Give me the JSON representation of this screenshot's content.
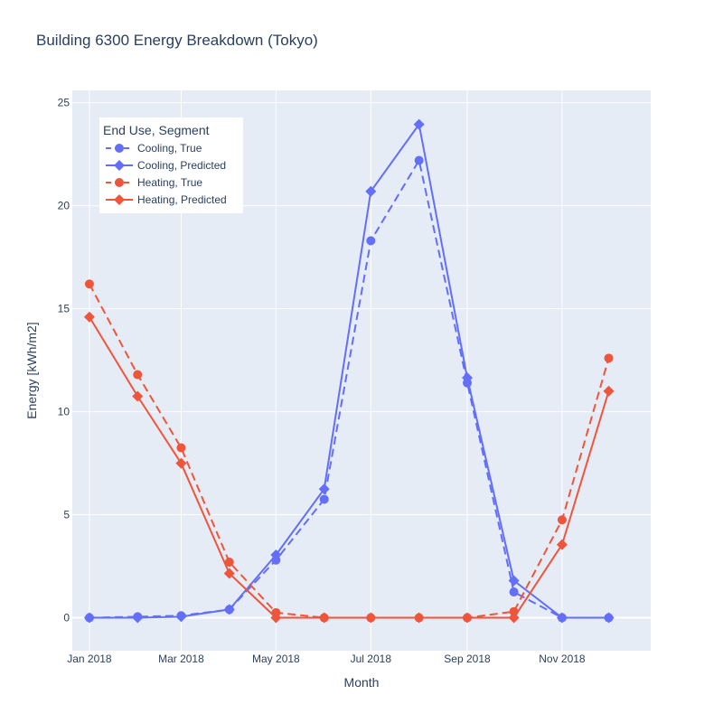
{
  "chart_data": {
    "type": "line",
    "title": "Building 6300  Energy Breakdown (Tokyo)",
    "xlabel": "Month",
    "ylabel": "Energy  [kWh/m2]",
    "x": [
      "2018-01-01",
      "2018-02-01",
      "2018-03-01",
      "2018-04-01",
      "2018-05-01",
      "2018-06-01",
      "2018-07-01",
      "2018-08-01",
      "2018-09-01",
      "2018-10-01",
      "2018-11-01",
      "2018-12-01"
    ],
    "x_range": [
      "2017-12-21",
      "2018-12-28"
    ],
    "x_ticks": [
      "2018-01-01",
      "2018-03-01",
      "2018-05-01",
      "2018-07-01",
      "2018-09-01",
      "2018-11-01"
    ],
    "x_tick_labels": [
      "Jan 2018",
      "Mar 2018",
      "May 2018",
      "Jul 2018",
      "Sep 2018",
      "Nov 2018"
    ],
    "ylim": [
      -1.6,
      25.6
    ],
    "y_ticks": [
      0,
      5,
      10,
      15,
      20,
      25
    ],
    "y_tick_labels": [
      "0",
      "5",
      "10",
      "15",
      "20",
      "25"
    ],
    "grid": true,
    "legend": {
      "title": "End Use, Segment",
      "position": "top-left"
    },
    "colors": {
      "cooling": "#636efa",
      "heating": "#ef553b",
      "plot_bg": "#e5ecf6",
      "grid": "#ffffff",
      "text": "#2a3f5f"
    },
    "series": [
      {
        "name": "Cooling, True",
        "color": "#636efa",
        "dash": "dashed",
        "marker": "circle",
        "values": [
          0.0,
          0.05,
          0.1,
          0.4,
          2.8,
          5.75,
          18.3,
          22.2,
          11.4,
          1.25,
          0.0,
          0.0
        ]
      },
      {
        "name": "Cooling, Predicted",
        "color": "#636efa",
        "dash": "solid",
        "marker": "diamond",
        "values": [
          0.0,
          0.0,
          0.05,
          0.4,
          3.05,
          6.25,
          20.7,
          23.95,
          11.65,
          1.8,
          0.0,
          0.0
        ]
      },
      {
        "name": "Heating, True",
        "color": "#ef553b",
        "dash": "dashed",
        "marker": "circle",
        "values": [
          16.2,
          11.8,
          8.25,
          2.7,
          0.25,
          0.0,
          0.0,
          0.0,
          0.0,
          0.3,
          4.75,
          12.6
        ]
      },
      {
        "name": "Heating, Predicted",
        "color": "#ef553b",
        "dash": "solid",
        "marker": "diamond",
        "values": [
          14.6,
          10.75,
          7.5,
          2.15,
          0.0,
          0.0,
          0.0,
          0.0,
          0.0,
          0.0,
          3.55,
          11.0
        ]
      }
    ]
  }
}
